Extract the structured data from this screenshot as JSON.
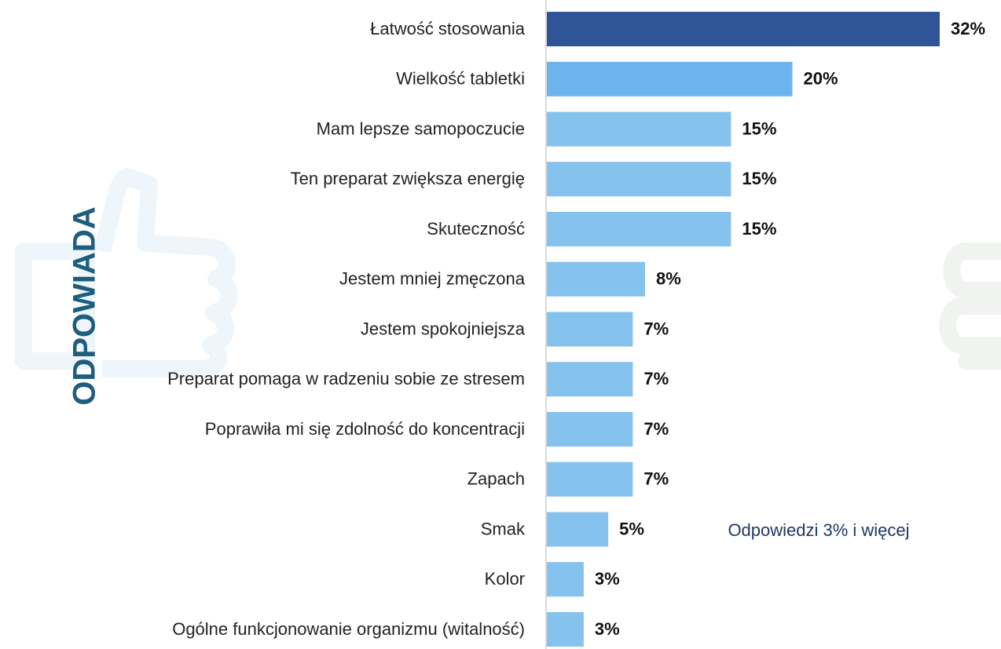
{
  "chart_data": {
    "type": "bar",
    "orientation": "horizontal",
    "side_label": "ODPOWIADA",
    "annotation": "Odpowiedzi 3% i więcej",
    "categories": [
      "Łatwość stosowania",
      "Wielkość tabletki",
      "Mam lepsze samopoczucie",
      "Ten preparat zwiększa energię",
      "Skuteczność",
      "Jestem mniej zmęczona",
      "Jestem spokojniejsza",
      "Preparat pomaga w radzeniu sobie ze stresem",
      "Poprawiła mi się zdolność do koncentracji",
      "Zapach",
      "Smak",
      "Kolor",
      "Ogólne funkcjonowanie organizmu (witalność)"
    ],
    "values": [
      32,
      20,
      15,
      15,
      15,
      8,
      7,
      7,
      7,
      7,
      5,
      3,
      3
    ],
    "value_labels": [
      "32%",
      "20%",
      "15%",
      "15%",
      "15%",
      "8%",
      "7%",
      "7%",
      "7%",
      "7%",
      "5%",
      "3%",
      "3%"
    ],
    "colors": [
      "#2f5597",
      "#6cb4eb",
      "#85c2ee",
      "#85c2ee",
      "#85c2ee",
      "#85c2ee",
      "#85c2ee",
      "#85c2ee",
      "#85c2ee",
      "#85c2ee",
      "#85c2ee",
      "#85c2ee",
      "#85c2ee"
    ]
  }
}
